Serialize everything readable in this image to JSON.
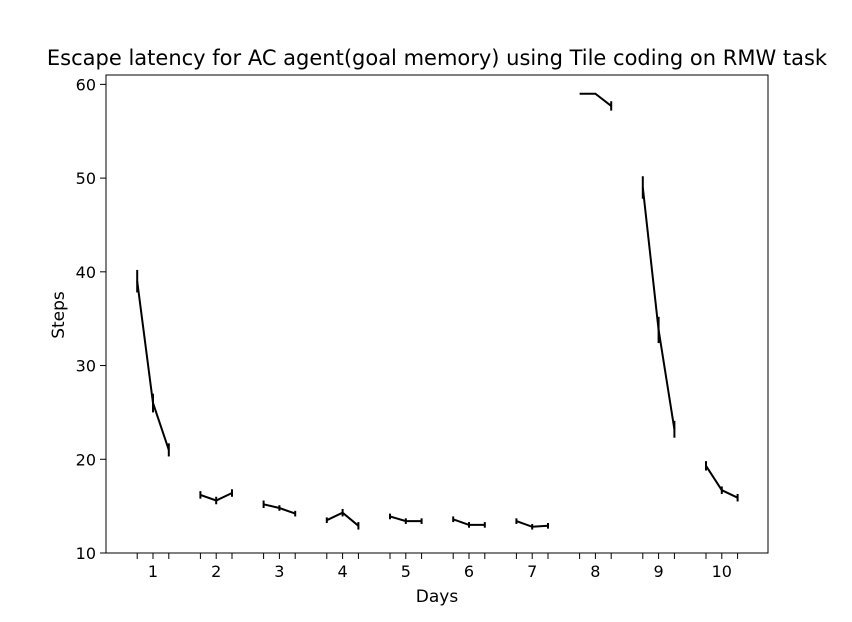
{
  "chart_data": {
    "type": "line",
    "title": "Escape latency for AC agent(goal memory) using Tile coding on RMW task",
    "xlabel": "Days",
    "ylabel": "Steps",
    "ylim": [
      10,
      61
    ],
    "yticks": [
      10,
      20,
      30,
      40,
      50,
      60
    ],
    "categories": [
      "1",
      "2",
      "3",
      "4",
      "5",
      "6",
      "7",
      "8",
      "9",
      "10"
    ],
    "trials_per_day": 3,
    "trial_offsets": [
      -0.25,
      0,
      0.25
    ],
    "grid": false,
    "days": [
      {
        "day": "1",
        "values": [
          39.0,
          26.0,
          21.0
        ],
        "errors": [
          1.2,
          1.0,
          0.7
        ]
      },
      {
        "day": "2",
        "values": [
          16.2,
          15.6,
          16.4
        ],
        "errors": [
          0.4,
          0.4,
          0.4
        ]
      },
      {
        "day": "3",
        "values": [
          15.2,
          14.8,
          14.2
        ],
        "errors": [
          0.4,
          0.3,
          0.3
        ]
      },
      {
        "day": "4",
        "values": [
          13.5,
          14.3,
          12.9
        ],
        "errors": [
          0.3,
          0.4,
          0.4
        ]
      },
      {
        "day": "5",
        "values": [
          13.9,
          13.4,
          13.4
        ],
        "errors": [
          0.3,
          0.3,
          0.3
        ]
      },
      {
        "day": "6",
        "values": [
          13.6,
          13.0,
          13.0
        ],
        "errors": [
          0.3,
          0.3,
          0.3
        ]
      },
      {
        "day": "7",
        "values": [
          13.4,
          12.8,
          12.9
        ],
        "errors": [
          0.3,
          0.3,
          0.3
        ]
      },
      {
        "day": "8",
        "values": [
          59.0,
          59.0,
          57.7
        ],
        "errors": [
          0.0,
          0.0,
          0.5
        ]
      },
      {
        "day": "9",
        "values": [
          49.0,
          33.8,
          23.2
        ],
        "errors": [
          1.2,
          1.4,
          0.9
        ]
      },
      {
        "day": "10",
        "values": [
          19.3,
          16.7,
          15.9
        ],
        "errors": [
          0.5,
          0.4,
          0.4
        ]
      }
    ]
  }
}
